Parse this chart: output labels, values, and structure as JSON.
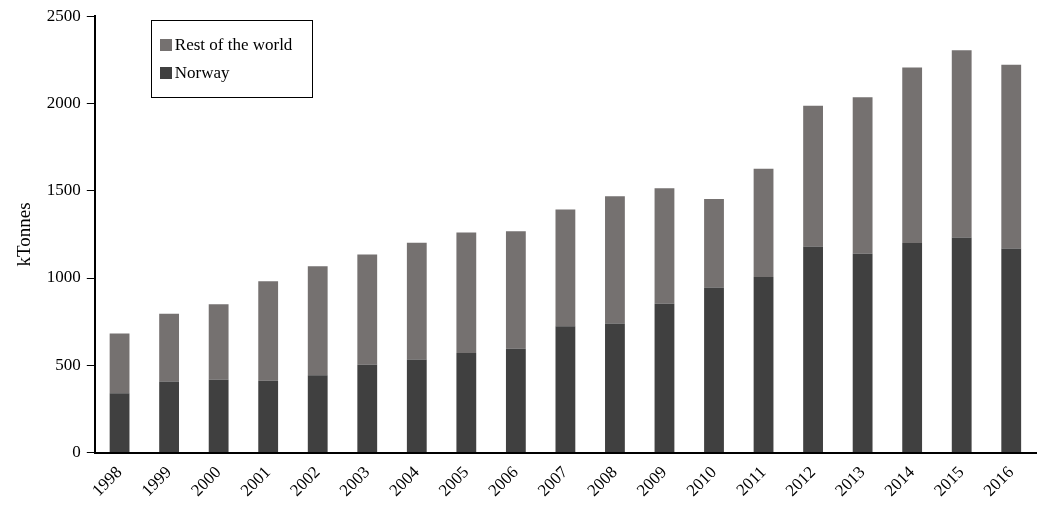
{
  "chart_data": {
    "type": "bar",
    "ylabel": "kTonnes",
    "stacked": true,
    "legend": "top left",
    "grid": false,
    "categories": [
      "1998",
      "1999",
      "2000",
      "2001",
      "2002",
      "2003",
      "2004",
      "2005",
      "2006",
      "2007",
      "2008",
      "2009",
      "2010",
      "2011",
      "2012",
      "2013",
      "2014",
      "2015",
      "2016"
    ],
    "ylim": [
      0,
      2500
    ],
    "yticks": [
      0,
      500,
      1000,
      1500,
      2000,
      2500
    ],
    "series": [
      {
        "name": "Norway",
        "color": "#404040",
        "values": [
          340,
          407,
          417,
          411,
          443,
          503,
          533,
          570,
          594,
          723,
          739,
          853,
          946,
          1006,
          1180,
          1139,
          1200,
          1232,
          1169
        ]
      },
      {
        "name": "Rest of the world",
        "color": "#757170",
        "values": [
          342,
          388,
          432,
          571,
          624,
          632,
          669,
          690,
          674,
          670,
          730,
          661,
          507,
          620,
          807,
          896,
          1006,
          1073,
          1053
        ]
      }
    ]
  }
}
